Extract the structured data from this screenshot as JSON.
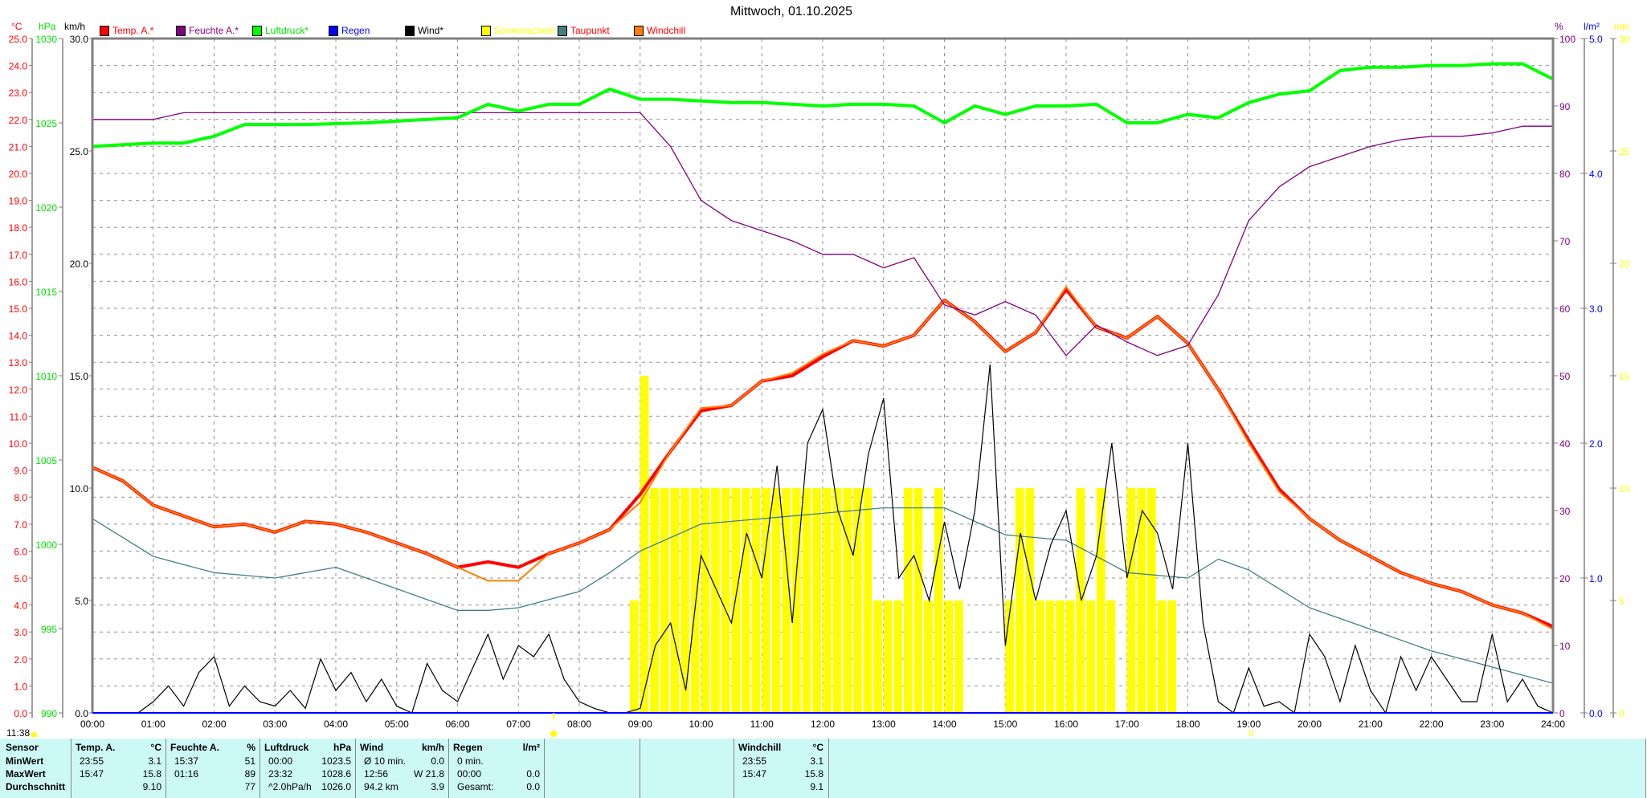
{
  "title": "Mittwoch, 01.10.2025",
  "legend": [
    {
      "label": "Temp. A.*",
      "color": "#ff0000",
      "text_color": "#ff0000"
    },
    {
      "label": "Feuchte A.*",
      "color": "#800080",
      "text_color": "#800080"
    },
    {
      "label": "Luftdruck*",
      "color": "#00ff00",
      "text_color": "#00e000"
    },
    {
      "label": "Regen",
      "color": "#0000ff",
      "text_color": "#0000ff"
    },
    {
      "label": "Wind*",
      "color": "#000000",
      "text_color": "#000000"
    },
    {
      "label": "Sonnenschein",
      "color": "#ffff00",
      "text_color": "#ffff00"
    },
    {
      "label": "Taupunkt",
      "color": "#408080",
      "text_color": "#ff0000"
    },
    {
      "label": "Windchill",
      "color": "#ff8000",
      "text_color": "#ff0000"
    }
  ],
  "units": {
    "temp": "°C",
    "pressure": "hPa",
    "wind": "km/h",
    "humidity": "%",
    "rain": "l/m²",
    "sun": "min"
  },
  "day_length": "11:38",
  "chart_data": {
    "type": "line",
    "title": "Mittwoch, 01.10.2025",
    "x_ticks": [
      "00:00",
      "01:00",
      "02:00",
      "03:00",
      "04:00",
      "05:00",
      "06:00",
      "07:00",
      "08:00",
      "09:00",
      "10:00",
      "11:00",
      "12:00",
      "13:00",
      "14:00",
      "15:00",
      "16:00",
      "17:00",
      "18:00",
      "19:00",
      "20:00",
      "21:00",
      "22:00",
      "23:00",
      "24:00"
    ],
    "xlim_hours": [
      0,
      24
    ],
    "axes": {
      "temp": {
        "range": [
          0,
          25
        ],
        "ticks": [
          "0.0",
          "1.0",
          "2.0",
          "3.0",
          "4.0",
          "5.0",
          "6.0",
          "7.0",
          "8.0",
          "9.0",
          "10.0",
          "11.0",
          "12.0",
          "13.0",
          "14.0",
          "15.0",
          "16.0",
          "17.0",
          "18.0",
          "19.0",
          "20.0",
          "21.0",
          "22.0",
          "23.0",
          "24.0",
          "25.0"
        ]
      },
      "pressure": {
        "range": [
          990,
          1030
        ],
        "ticks": [
          "990",
          "995",
          "1000",
          "1005",
          "1010",
          "1015",
          "1020",
          "1025",
          "1030"
        ]
      },
      "wind": {
        "range": [
          0,
          30
        ],
        "ticks": [
          "0.0",
          "5.0",
          "10.0",
          "15.0",
          "20.0",
          "25.0",
          "30.0"
        ]
      },
      "humidity": {
        "range": [
          0,
          100
        ],
        "ticks": [
          "0",
          "10",
          "20",
          "30",
          "40",
          "50",
          "60",
          "70",
          "80",
          "90",
          "100"
        ]
      },
      "rain": {
        "range": [
          0,
          5
        ],
        "ticks": [
          "0.0",
          "1.0",
          "2.0",
          "3.0",
          "4.0",
          "5.0"
        ]
      },
      "sun": {
        "range": [
          0,
          30
        ],
        "ticks": [
          "0",
          "5",
          "10",
          "15",
          "20",
          "25",
          "30"
        ]
      }
    },
    "grid": true,
    "series_step_minutes": 30,
    "series": [
      {
        "name": "Temp. A.*",
        "axis": "temp",
        "color": "#ff0000",
        "values": [
          9.1,
          8.6,
          7.7,
          7.3,
          6.9,
          7.0,
          6.7,
          7.1,
          7.0,
          6.7,
          6.3,
          5.9,
          5.4,
          5.6,
          5.4,
          5.9,
          6.3,
          6.8,
          8.1,
          9.7,
          11.2,
          11.4,
          12.3,
          12.5,
          13.2,
          13.8,
          13.6,
          14.0,
          15.3,
          14.5,
          13.4,
          14.1,
          15.7,
          14.3,
          13.9,
          14.7,
          13.7,
          12.0,
          10.1,
          8.3,
          7.2,
          6.4,
          5.8,
          5.2,
          4.8,
          4.5,
          4.0,
          3.7,
          3.2
        ]
      },
      {
        "name": "Windchill",
        "axis": "temp",
        "color": "#ff8000",
        "values": [
          9.1,
          8.6,
          7.7,
          7.3,
          6.9,
          7.0,
          6.7,
          7.1,
          7.0,
          6.7,
          6.3,
          5.9,
          5.4,
          4.9,
          4.9,
          5.9,
          6.3,
          6.8,
          7.8,
          9.7,
          11.3,
          11.4,
          12.3,
          12.6,
          13.3,
          13.8,
          13.6,
          14.0,
          15.3,
          14.5,
          13.4,
          14.1,
          15.8,
          14.3,
          13.9,
          14.7,
          13.7,
          12.0,
          10.0,
          8.2,
          7.2,
          6.4,
          5.8,
          5.2,
          4.8,
          4.5,
          4.0,
          3.7,
          3.1
        ]
      },
      {
        "name": "Taupunkt",
        "axis": "temp",
        "color": "#408080",
        "values": [
          7.2,
          6.5,
          5.8,
          5.5,
          5.2,
          5.1,
          5.0,
          5.2,
          5.4,
          5.0,
          4.6,
          4.2,
          3.8,
          3.8,
          3.9,
          4.2,
          4.5,
          5.2,
          6.0,
          6.5,
          7.0,
          7.1,
          7.2,
          7.3,
          7.4,
          7.5,
          7.6,
          7.6,
          7.6,
          7.1,
          6.6,
          6.5,
          6.4,
          5.8,
          5.2,
          5.1,
          5.0,
          5.7,
          5.3,
          4.6,
          3.9,
          3.5,
          3.1,
          2.7,
          2.3,
          2.0,
          1.7,
          1.4,
          1.1
        ]
      },
      {
        "name": "Feuchte A.*",
        "axis": "humidity",
        "color": "#800080",
        "values": [
          88,
          88,
          88,
          89,
          89,
          89,
          89,
          89,
          89,
          89,
          89,
          89,
          89,
          89,
          89,
          89,
          89,
          89,
          89,
          84,
          76,
          73,
          71.5,
          70,
          68,
          68,
          66,
          67.5,
          60.5,
          59,
          61,
          59,
          53,
          57.5,
          55,
          53,
          54.5,
          62,
          73,
          78,
          81,
          82.5,
          84,
          85,
          85.5,
          85.5,
          86,
          87,
          87
        ]
      },
      {
        "name": "Luftdruck*",
        "axis": "pressure",
        "color": "#00ff00",
        "values": [
          1023.6,
          1023.7,
          1023.8,
          1023.8,
          1024.2,
          1024.9,
          1024.9,
          1024.9,
          1024.95,
          1025.0,
          1025.1,
          1025.2,
          1025.3,
          1026.1,
          1025.7,
          1026.1,
          1026.1,
          1027.0,
          1026.4,
          1026.4,
          1026.3,
          1026.2,
          1026.2,
          1026.1,
          1026.0,
          1026.1,
          1026.1,
          1026.0,
          1025.0,
          1026.0,
          1025.5,
          1026.0,
          1026.0,
          1026.1,
          1025.0,
          1025.0,
          1025.5,
          1025.3,
          1026.2,
          1026.7,
          1026.9,
          1028.1,
          1028.3,
          1028.3,
          1028.4,
          1028.4,
          1028.5,
          1028.5,
          1027.6
        ]
      },
      {
        "name": "Regen",
        "axis": "rain",
        "color": "#0000ff",
        "values": [
          0,
          0,
          0,
          0,
          0,
          0,
          0,
          0,
          0,
          0,
          0,
          0,
          0,
          0,
          0,
          0,
          0,
          0,
          0,
          0,
          0,
          0,
          0,
          0,
          0,
          0,
          0,
          0,
          0,
          0,
          0,
          0,
          0,
          0,
          0,
          0,
          0,
          0,
          0,
          0,
          0,
          0,
          0,
          0,
          0,
          0,
          0,
          0,
          0
        ]
      }
    ],
    "wind": {
      "name": "Wind*",
      "axis": "wind",
      "color": "#000000",
      "step_minutes": 15,
      "values": [
        0,
        0,
        0,
        0,
        0.5,
        1.2,
        0.3,
        1.8,
        2.5,
        0.3,
        1.2,
        0.5,
        0.3,
        1.0,
        0.2,
        2.4,
        1.0,
        1.8,
        0.5,
        1.5,
        0.3,
        0,
        2.2,
        1.0,
        0.5,
        2.0,
        3.5,
        1.5,
        3.0,
        2.5,
        3.5,
        1.5,
        0.5,
        0.2,
        0,
        0,
        0.2,
        3.0,
        4.0,
        1.0,
        7.0,
        5.5,
        4.0,
        8.0,
        6.0,
        11.0,
        4.0,
        12.0,
        13.5,
        9.0,
        7.0,
        11.5,
        14.0,
        6.0,
        7.0,
        5.0,
        8.5,
        5.5,
        9.0,
        15.5,
        3.0,
        8.0,
        5.0,
        7.5,
        9.0,
        5.0,
        7.0,
        12.0,
        6.0,
        9.0,
        8.0,
        5.5,
        12.0,
        4.0,
        0.5,
        0,
        2.0,
        0.3,
        0.5,
        0,
        3.5,
        2.5,
        0.5,
        3.0,
        1.0,
        0,
        2.5,
        1.0,
        2.5,
        1.5,
        0.5,
        0.5,
        3.5,
        0.5,
        1.5,
        0.3,
        0
      ]
    },
    "sunshine": {
      "name": "Sonnenschein",
      "axis": "sun",
      "color": "#ffff00",
      "start": "08:50",
      "step_minutes": 10,
      "values": [
        5,
        15,
        10,
        10,
        10,
        10,
        10,
        10,
        10,
        10,
        10,
        10,
        10,
        10,
        10,
        10,
        10,
        10,
        10,
        10,
        10,
        10,
        10,
        10,
        5,
        5,
        5,
        10,
        10,
        5,
        10,
        5,
        5,
        0,
        0,
        0,
        0,
        5,
        10,
        10,
        5,
        5,
        5,
        5,
        10,
        5,
        10,
        5,
        0,
        10,
        10,
        10,
        5,
        5
      ]
    },
    "sunrise_hour": 7.58,
    "sunset_hour": 19.0
  },
  "stats": {
    "row_labels": [
      "Sensor",
      "MinWert",
      "MaxWert",
      "Durchschnitt"
    ],
    "groups": [
      {
        "name": "Temp. A.",
        "unit": "°C",
        "rows": [
          [
            "23:55",
            "3.1"
          ],
          [
            "15:47",
            "15.8"
          ],
          [
            "",
            "9.10"
          ]
        ]
      },
      {
        "name": "Feuchte A.",
        "unit": "%",
        "rows": [
          [
            "15:37",
            "51"
          ],
          [
            "01:16",
            "89"
          ],
          [
            "",
            "77"
          ]
        ]
      },
      {
        "name": "Luftdruck",
        "unit": "hPa",
        "rows": [
          [
            "00:00",
            "1023.5"
          ],
          [
            "23:32",
            "1028.6"
          ],
          [
            "^2.0hPa/h",
            "1026.0"
          ]
        ]
      },
      {
        "name": "Wind",
        "unit": "km/h",
        "rows": [
          [
            "Ø 10 min.",
            "0.0"
          ],
          [
            "12:56",
            "W 21.8"
          ],
          [
            "94.2 km",
            "3.9"
          ]
        ]
      },
      {
        "name": "Regen",
        "unit": "l/m²",
        "rows": [
          [
            "0 min.",
            ""
          ],
          [
            "00:00",
            "0.0"
          ],
          [
            "Gesamt:",
            "0.0"
          ]
        ]
      },
      {
        "name": "",
        "unit": "",
        "rows": [
          [
            "",
            ""
          ],
          [
            "",
            ""
          ],
          [
            "",
            ""
          ]
        ]
      },
      {
        "name": "",
        "unit": "",
        "rows": [
          [
            "",
            ""
          ],
          [
            "",
            ""
          ],
          [
            "",
            ""
          ]
        ]
      },
      {
        "name": "Windchill",
        "unit": "°C",
        "rows": [
          [
            "23:55",
            "3.1"
          ],
          [
            "15:47",
            "15.8"
          ],
          [
            "",
            "9.1"
          ]
        ]
      }
    ]
  }
}
